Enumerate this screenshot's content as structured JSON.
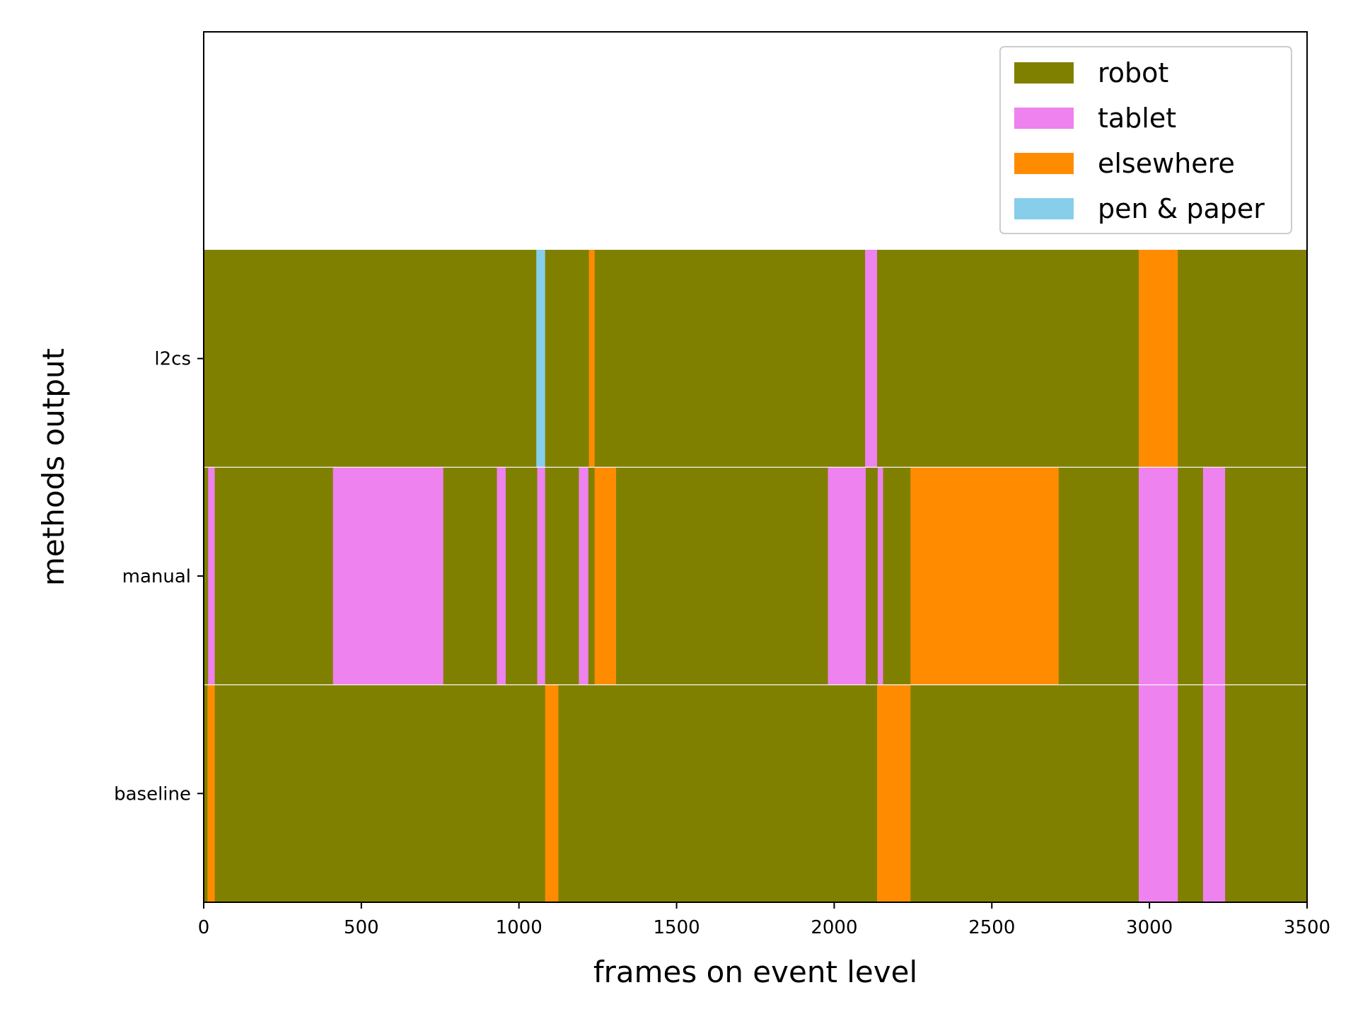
{
  "chart_data": {
    "type": "bar",
    "orientation": "horizontal-stacked-segments",
    "title": "",
    "xlabel": "frames on event level",
    "ylabel": "methods output",
    "xlim": [
      0,
      3500
    ],
    "xticks": [
      0,
      500,
      1000,
      1500,
      2000,
      2500,
      3000,
      3500
    ],
    "categories": [
      "baseline",
      "manual",
      "l2cs"
    ],
    "grid": false,
    "legend_position": "top-right",
    "legend": [
      {
        "label": "robot",
        "color": "#808000"
      },
      {
        "label": "tablet",
        "color": "#EE82EE"
      },
      {
        "label": "elsewhere",
        "color": "#FF8C00"
      },
      {
        "label": "pen & paper",
        "color": "#87CEEB"
      }
    ],
    "rows": [
      {
        "name": "baseline",
        "segments": [
          {
            "start": 0,
            "end": 12,
            "label": "robot"
          },
          {
            "start": 12,
            "end": 35,
            "label": "elsewhere"
          },
          {
            "start": 35,
            "end": 1083,
            "label": "robot"
          },
          {
            "start": 1083,
            "end": 1125,
            "label": "elsewhere"
          },
          {
            "start": 1125,
            "end": 2136,
            "label": "robot"
          },
          {
            "start": 2136,
            "end": 2242,
            "label": "elsewhere"
          },
          {
            "start": 2242,
            "end": 2966,
            "label": "robot"
          },
          {
            "start": 2966,
            "end": 3090,
            "label": "tablet"
          },
          {
            "start": 3090,
            "end": 3170,
            "label": "robot"
          },
          {
            "start": 3170,
            "end": 3240,
            "label": "tablet"
          },
          {
            "start": 3240,
            "end": 3500,
            "label": "robot"
          }
        ]
      },
      {
        "name": "manual",
        "segments": [
          {
            "start": 0,
            "end": 14,
            "label": "robot"
          },
          {
            "start": 14,
            "end": 35,
            "label": "tablet"
          },
          {
            "start": 35,
            "end": 410,
            "label": "robot"
          },
          {
            "start": 410,
            "end": 760,
            "label": "tablet"
          },
          {
            "start": 760,
            "end": 930,
            "label": "robot"
          },
          {
            "start": 930,
            "end": 958,
            "label": "tablet"
          },
          {
            "start": 958,
            "end": 1058,
            "label": "robot"
          },
          {
            "start": 1058,
            "end": 1083,
            "label": "tablet"
          },
          {
            "start": 1083,
            "end": 1190,
            "label": "robot"
          },
          {
            "start": 1190,
            "end": 1220,
            "label": "tablet"
          },
          {
            "start": 1220,
            "end": 1240,
            "label": "robot"
          },
          {
            "start": 1240,
            "end": 1308,
            "label": "elsewhere"
          },
          {
            "start": 1308,
            "end": 1980,
            "label": "robot"
          },
          {
            "start": 1980,
            "end": 2100,
            "label": "tablet"
          },
          {
            "start": 2100,
            "end": 2138,
            "label": "robot"
          },
          {
            "start": 2138,
            "end": 2155,
            "label": "tablet"
          },
          {
            "start": 2155,
            "end": 2242,
            "label": "robot"
          },
          {
            "start": 2242,
            "end": 2712,
            "label": "elsewhere"
          },
          {
            "start": 2712,
            "end": 2966,
            "label": "robot"
          },
          {
            "start": 2966,
            "end": 3090,
            "label": "tablet"
          },
          {
            "start": 3090,
            "end": 3170,
            "label": "robot"
          },
          {
            "start": 3170,
            "end": 3240,
            "label": "tablet"
          },
          {
            "start": 3240,
            "end": 3500,
            "label": "robot"
          }
        ]
      },
      {
        "name": "l2cs",
        "segments": [
          {
            "start": 0,
            "end": 1055,
            "label": "robot"
          },
          {
            "start": 1055,
            "end": 1083,
            "label": "pen & paper"
          },
          {
            "start": 1083,
            "end": 1222,
            "label": "robot"
          },
          {
            "start": 1222,
            "end": 1240,
            "label": "elsewhere"
          },
          {
            "start": 1240,
            "end": 2098,
            "label": "robot"
          },
          {
            "start": 2098,
            "end": 2136,
            "label": "tablet"
          },
          {
            "start": 2136,
            "end": 2966,
            "label": "robot"
          },
          {
            "start": 2966,
            "end": 3090,
            "label": "elsewhere"
          },
          {
            "start": 3090,
            "end": 3500,
            "label": "robot"
          }
        ]
      }
    ]
  }
}
